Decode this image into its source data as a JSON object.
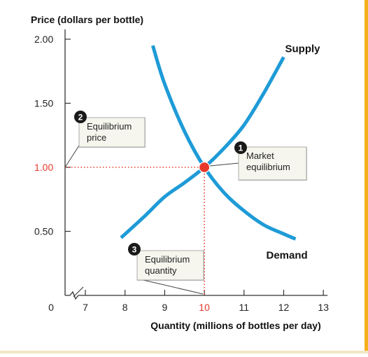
{
  "chart_data": {
    "type": "line",
    "ylabel": "Price (dollars per bottle)",
    "xlabel": "Quantity (millions of bottles per day)",
    "x_ticks": [
      "7",
      "8",
      "9",
      "10",
      "11",
      "12",
      "13"
    ],
    "y_ticks": [
      "0.50",
      "1.00",
      "1.50",
      "2.00"
    ],
    "origin_label": "0",
    "xlim": [
      7,
      13
    ],
    "ylim": [
      0,
      2.0
    ],
    "axis_break": true,
    "grid": false,
    "legend": "none",
    "series": [
      {
        "name": "Supply",
        "color": "#1e9bd7",
        "points": [
          [
            7.9,
            0.45
          ],
          [
            8.5,
            0.62
          ],
          [
            9.0,
            0.77
          ],
          [
            9.5,
            0.88
          ],
          [
            10.0,
            1.0
          ],
          [
            10.5,
            1.15
          ],
          [
            11.0,
            1.33
          ],
          [
            11.5,
            1.58
          ],
          [
            12.0,
            1.86
          ]
        ]
      },
      {
        "name": "Demand",
        "color": "#1e9bd7",
        "points": [
          [
            8.7,
            1.95
          ],
          [
            9.0,
            1.65
          ],
          [
            9.5,
            1.28
          ],
          [
            10.0,
            1.0
          ],
          [
            10.5,
            0.8
          ],
          [
            11.0,
            0.66
          ],
          [
            11.5,
            0.55
          ],
          [
            12.0,
            0.48
          ],
          [
            12.3,
            0.44
          ]
        ]
      }
    ],
    "equilibrium": {
      "x": 10,
      "y": 1.0,
      "color": "#e8392b"
    },
    "highlight_color": "#e8392b",
    "annotations": [
      {
        "number": "1",
        "lines": [
          "Market",
          "equilibrium"
        ]
      },
      {
        "number": "2",
        "lines": [
          "Equilibrium",
          "price"
        ]
      },
      {
        "number": "3",
        "lines": [
          "Equilibrium",
          "quantity"
        ]
      }
    ]
  }
}
